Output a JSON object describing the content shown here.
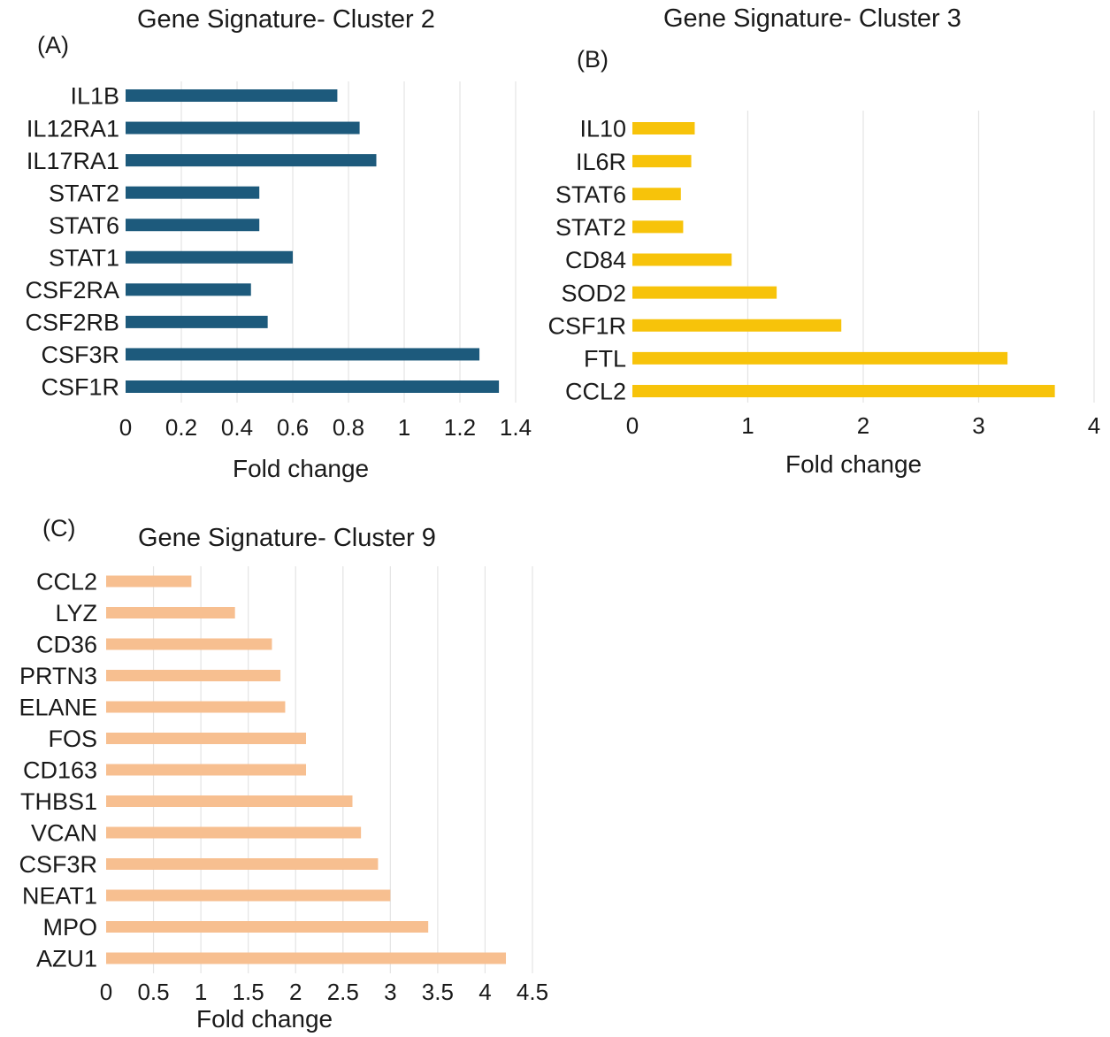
{
  "chart_data": [
    {
      "type": "bar",
      "orientation": "horizontal",
      "panel_label": "(A)",
      "title": "Gene Signature- Cluster 2",
      "xlabel": "Fold change",
      "ylabel": "",
      "categories": [
        "IL1B",
        "IL12RA1",
        "IL17RA1",
        "STAT2",
        "STAT6",
        "STAT1",
        "CSF2RA",
        "CSF2RB",
        "CSF3R",
        "CSF1R"
      ],
      "values": [
        0.76,
        0.84,
        0.9,
        0.48,
        0.48,
        0.6,
        0.45,
        0.51,
        1.27,
        1.34
      ],
      "ticks": [
        "0",
        "0.2",
        "0.4",
        "0.6",
        "0.8",
        "1",
        "1.2",
        "1.4"
      ],
      "xlim": [
        0,
        1.4
      ],
      "grid": true,
      "color": "#1d5a7c"
    },
    {
      "type": "bar",
      "orientation": "horizontal",
      "panel_label": "(B)",
      "title": "Gene Signature- Cluster 3",
      "xlabel": "Fold change",
      "ylabel": "",
      "categories": [
        "IL10",
        "IL6R",
        "STAT6",
        "STAT2",
        "CD84",
        "SOD2",
        "CSF1R",
        "FTL",
        "CCL2"
      ],
      "values": [
        0.54,
        0.51,
        0.42,
        0.44,
        0.86,
        1.25,
        1.81,
        3.25,
        3.66
      ],
      "ticks": [
        "0",
        "1",
        "2",
        "3",
        "4"
      ],
      "xlim": [
        0,
        4
      ],
      "grid": true,
      "color": "#f7c30a"
    },
    {
      "type": "bar",
      "orientation": "horizontal",
      "panel_label": "(C)",
      "title": "Gene Signature- Cluster 9",
      "xlabel": "Fold change",
      "ylabel": "",
      "categories": [
        "CCL2",
        "LYZ",
        "CD36",
        "PRTN3",
        "ELANE",
        "FOS",
        "CD163",
        "THBS1",
        "VCAN",
        "CSF3R",
        "NEAT1",
        "MPO",
        "AZU1"
      ],
      "values": [
        0.9,
        1.36,
        1.75,
        1.84,
        1.89,
        2.11,
        2.11,
        2.6,
        2.69,
        2.87,
        3.0,
        3.4,
        4.22
      ],
      "ticks": [
        "0",
        "0.5",
        "1",
        "1.5",
        "2",
        "2.5",
        "3",
        "3.5",
        "4",
        "4.5"
      ],
      "xlim": [
        0,
        4.5
      ],
      "grid": true,
      "color": "#f7bf90"
    }
  ]
}
